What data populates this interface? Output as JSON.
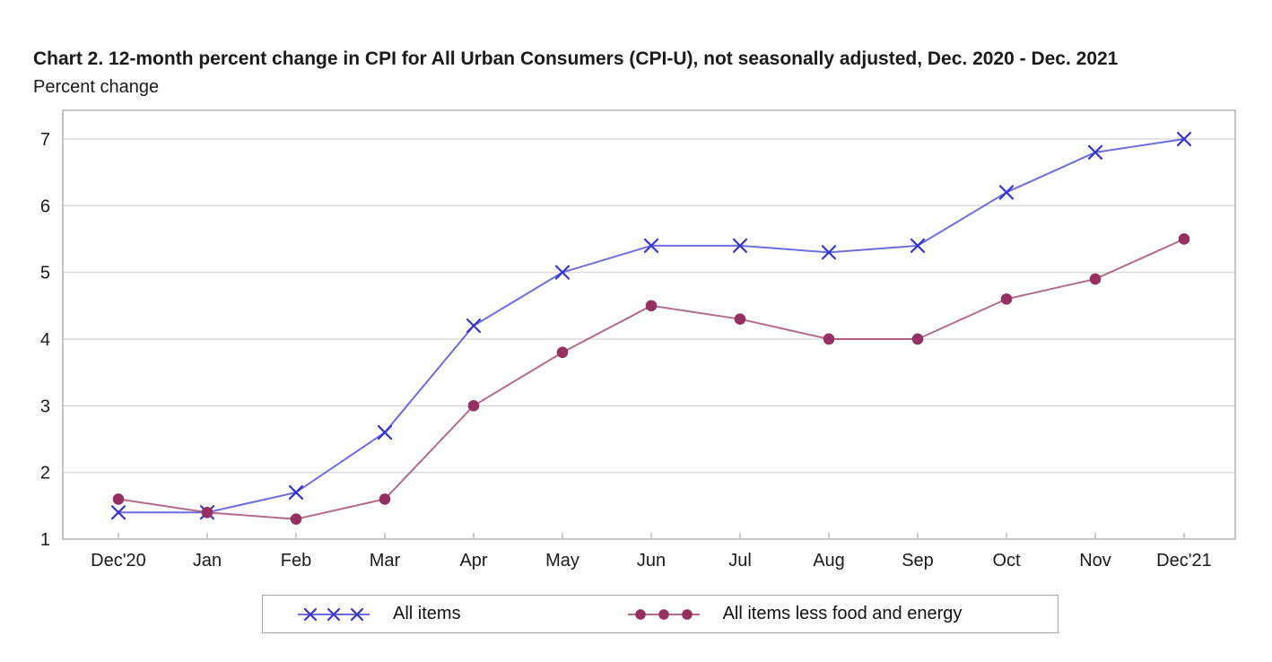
{
  "title": "Chart 2. 12-month percent change in CPI for All Urban Consumers (CPI-U), not seasonally adjusted, Dec. 2020 - Dec. 2021",
  "subtitle": "Percent change",
  "chart_data": {
    "type": "line",
    "title": "Chart 2. 12-month percent change in CPI for All Urban Consumers (CPI-U), not seasonally adjusted, Dec. 2020 - Dec. 2021",
    "ylabel": "Percent change",
    "xlabel": "",
    "categories": [
      "Dec'20",
      "Jan",
      "Feb",
      "Mar",
      "Apr",
      "May",
      "Jun",
      "Jul",
      "Aug",
      "Sep",
      "Oct",
      "Nov",
      "Dec'21"
    ],
    "series": [
      {
        "name": "All items",
        "marker": "x",
        "color": "#3434d2",
        "values": [
          1.4,
          1.4,
          1.7,
          2.6,
          4.2,
          5.0,
          5.4,
          5.4,
          5.3,
          5.4,
          6.2,
          6.8,
          7.0
        ]
      },
      {
        "name": "All items less food and energy",
        "marker": "circle",
        "color": "#963060",
        "values": [
          1.6,
          1.4,
          1.3,
          1.6,
          3.0,
          3.8,
          4.5,
          4.3,
          4.0,
          4.0,
          4.6,
          4.9,
          5.5
        ]
      }
    ],
    "y_ticks": [
      1,
      2,
      3,
      4,
      5,
      6,
      7
    ],
    "ylim": [
      1,
      7.43
    ],
    "grid": "horizontal",
    "legend_position": "bottom"
  },
  "colors": {
    "grid": "#dcdcdc",
    "axis_border": "#b0b0b0",
    "text": "#1a1a1a",
    "background": "#ffffff"
  }
}
